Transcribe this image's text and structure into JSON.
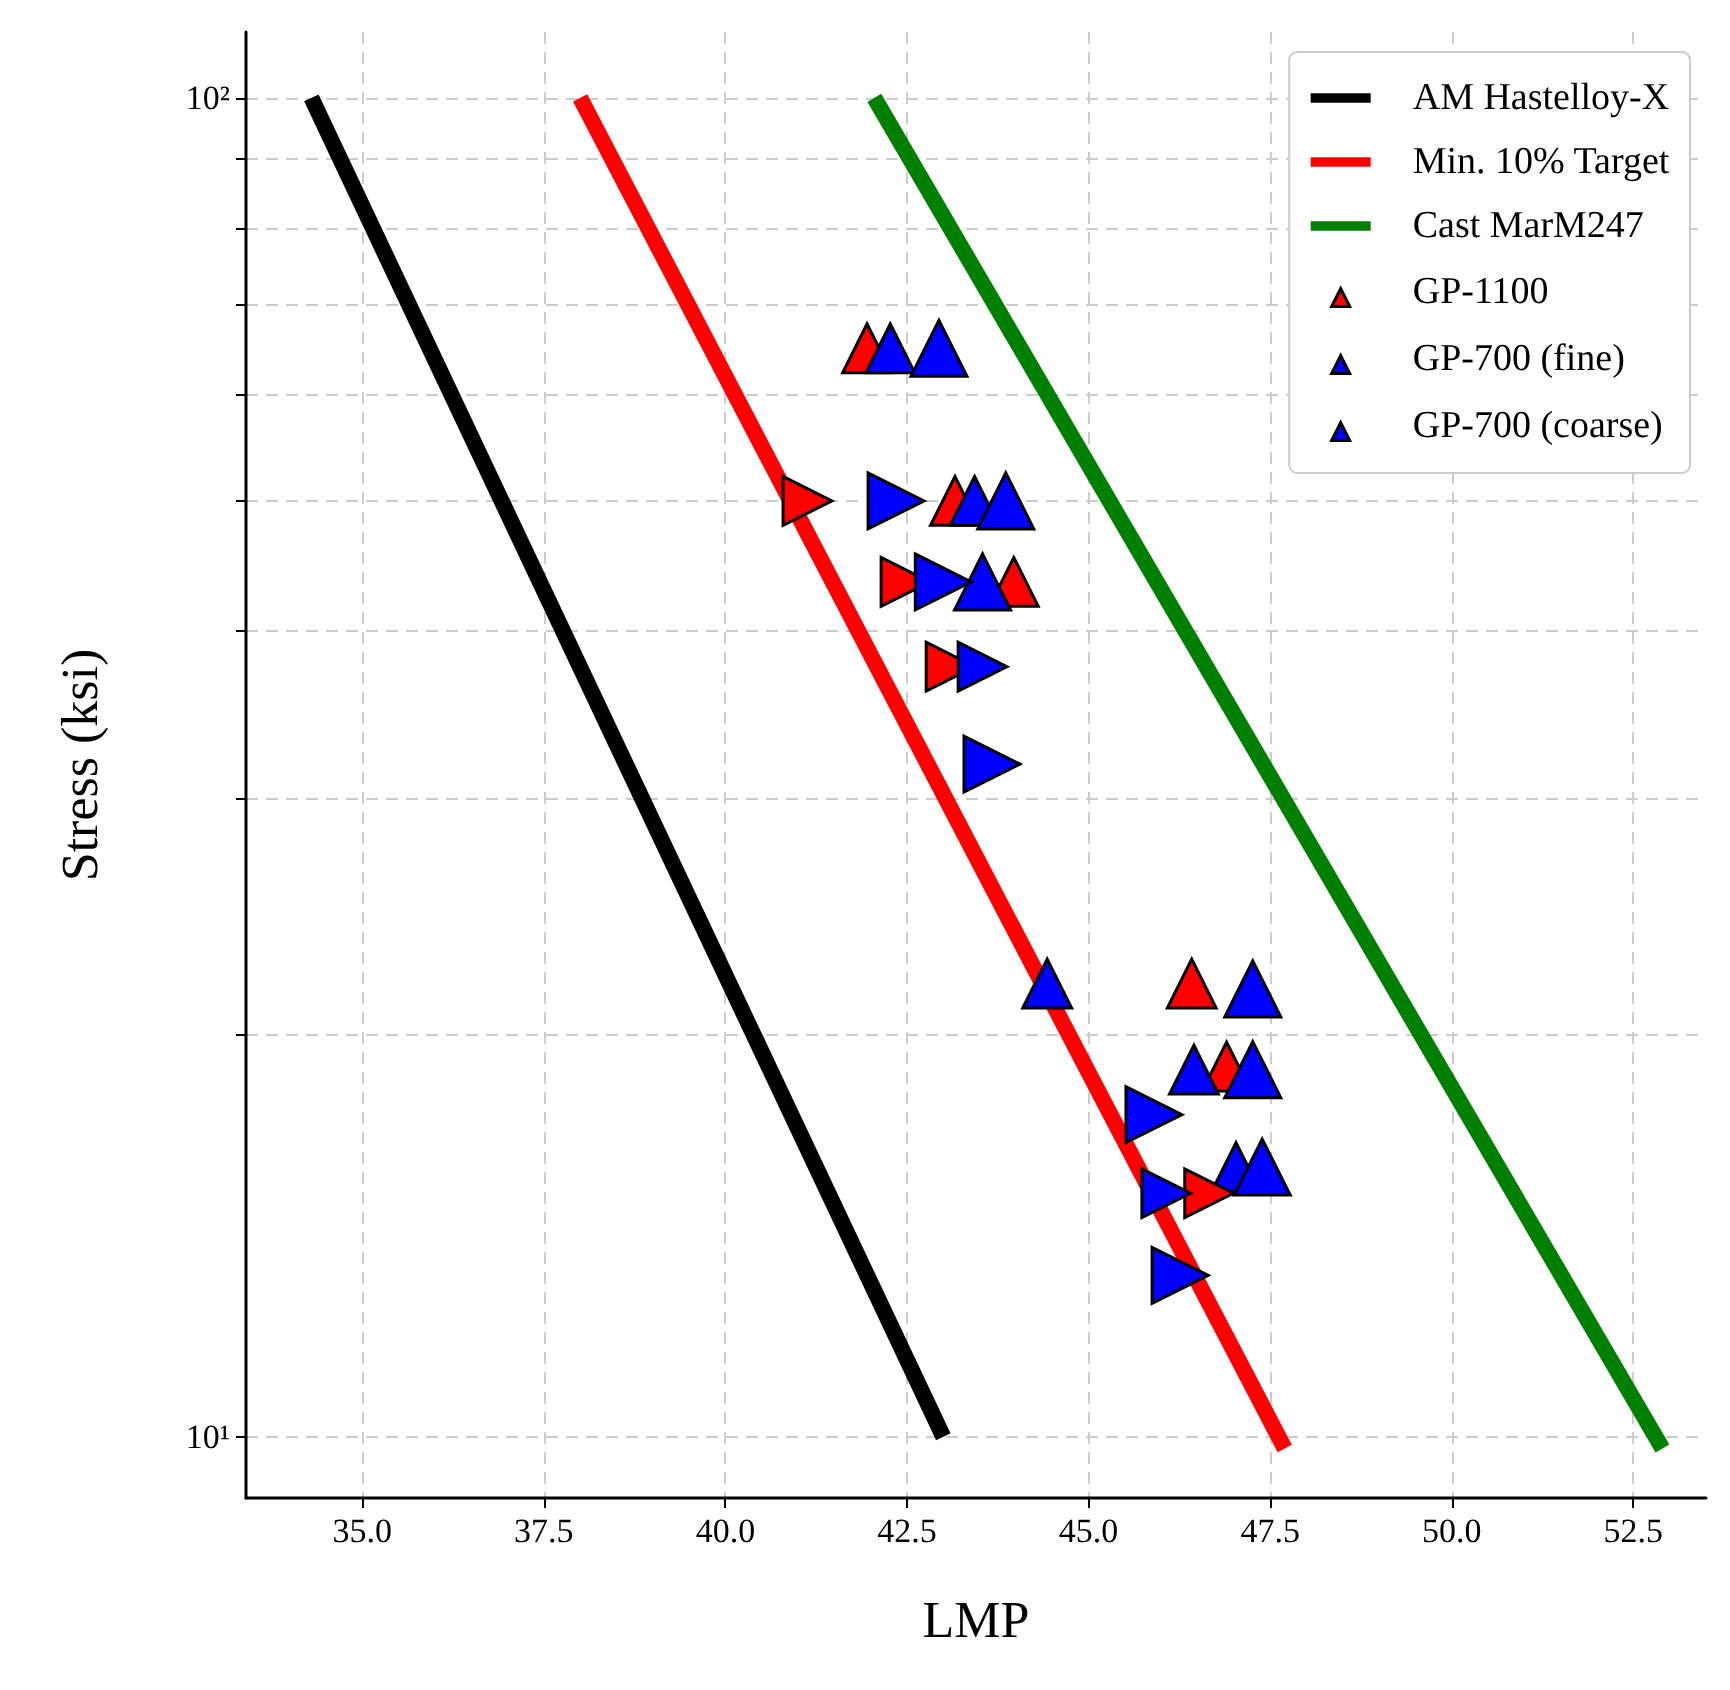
{
  "chart_data": {
    "type": "scatter",
    "xlabel": "LMP",
    "ylabel": "Stress (ksi)",
    "log": "y",
    "grid": true,
    "legend": "top right",
    "xlim": [
      33.4,
      53.5
    ],
    "ylim": [
      9,
      112
    ],
    "xticks": [
      {
        "value": 35,
        "label": "35.0"
      },
      37.5,
      {
        "value": 40,
        "label": "40.0"
      },
      42.5,
      {
        "value": 45,
        "label": "45.0"
      },
      47.5,
      {
        "value": 50,
        "label": "50.0"
      },
      52.5
    ],
    "yticks": [
      {
        "value": 10,
        "label": "10¹"
      },
      {
        "value": 20,
        "label": null
      },
      {
        "value": 30,
        "label": null
      },
      {
        "value": 40,
        "label": null
      },
      {
        "value": 50,
        "label": null
      },
      {
        "value": 60,
        "label": null
      },
      {
        "value": 70,
        "label": null
      },
      {
        "value": 80,
        "label": null
      },
      {
        "value": 90,
        "label": null
      },
      {
        "value": 100,
        "label": "10²"
      }
    ],
    "series": [
      {
        "name": "AM Hastelloy-X",
        "type": "line",
        "marker": "none",
        "color": "#000000",
        "x": [
          34.3,
          43.0
        ],
        "values": [
          100,
          10
        ]
      },
      {
        "name": "Min. 10% Target",
        "type": "line",
        "marker": "none",
        "color": "#ff0000",
        "x": [
          38.0,
          47.7
        ],
        "values": [
          100,
          9.8
        ]
      },
      {
        "name": "Cast MarM247",
        "type": "line",
        "marker": "none",
        "color": "#008000",
        "x": [
          42.05,
          52.9
        ],
        "values": [
          100,
          9.8
        ]
      },
      {
        "name": "GP-1100",
        "color": "#ff0000",
        "marker": "triangle",
        "sizes": [
          0.7,
          0.7,
          0.7,
          0.7,
          0.7
        ],
        "x": [
          41.95,
          43.16,
          43.97,
          46.42,
          46.9
        ],
        "values": [
          65,
          50,
          43.5,
          21.8,
          18.9
        ]
      },
      {
        "name": "GP-700 (fine)",
        "color": "#0000ff",
        "marker": "triangle",
        "sizes": [
          0.7,
          0.7,
          0.7,
          0.7,
          0.7
        ],
        "x": [
          42.27,
          43.43,
          44.43,
          46.45,
          47.03
        ],
        "values": [
          65,
          50,
          21.8,
          18.8,
          15.9
        ]
      },
      {
        "name": "GP-700 (coarse)",
        "color": "#0000ff",
        "marker": "triangle",
        "sizes": [
          1,
          1,
          1,
          1,
          1,
          1
        ],
        "x": [
          42.94,
          43.86,
          43.54,
          47.26,
          47.26,
          47.39
        ],
        "values": [
          65,
          50,
          43.5,
          21.6,
          18.8,
          15.9
        ]
      },
      {
        "color": "#ff0000",
        "marker": "triangle-right",
        "sizes": [
          0.7,
          0.7,
          0.7,
          0.7
        ],
        "x": [
          41.13,
          42.48,
          43.1,
          46.66
        ],
        "values": [
          50,
          43.5,
          37.6,
          15.2
        ]
      },
      {
        "color": "#0000ff",
        "marker": "triangle-right",
        "sizes": [
          0.7,
          0.7
        ],
        "x": [
          43.54,
          46.07
        ],
        "values": [
          37.6,
          15.2
        ]
      },
      {
        "color": "#0000ff",
        "marker": "triangle-right",
        "sizes": [
          1,
          1,
          1,
          1,
          1
        ],
        "x": [
          42.35,
          43.0,
          43.67,
          45.9,
          46.26
        ],
        "values": [
          50,
          43.5,
          31.8,
          17.4,
          13.2
        ]
      }
    ]
  }
}
